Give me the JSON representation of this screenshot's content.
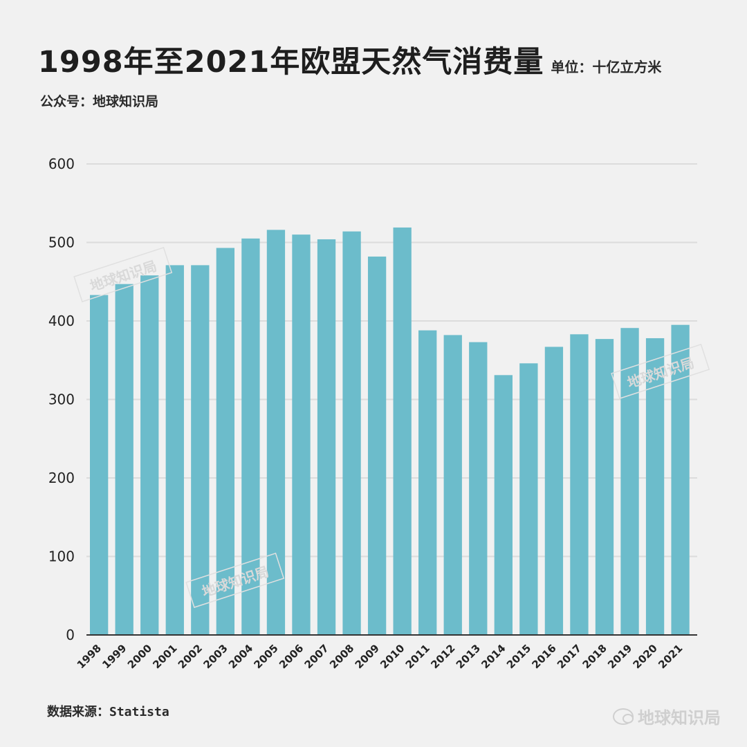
{
  "header": {
    "title": "1998年至2021年欧盟天然气消费量",
    "unit": "单位：十亿立方米",
    "subtitle": "公众号：地球知识局"
  },
  "footer": {
    "source": "数据来源：Statista",
    "brand": "地球知识局"
  },
  "watermark": "地球知识局",
  "chart_data": {
    "type": "bar",
    "title": "1998年至2021年欧盟天然气消费量",
    "unit": "单位：十亿立方米",
    "categories": [
      "1998",
      "1999",
      "2000",
      "2001",
      "2002",
      "2003",
      "2004",
      "2005",
      "2006",
      "2007",
      "2008",
      "2009",
      "2010",
      "2011",
      "2012",
      "2013",
      "2014",
      "2015",
      "2016",
      "2017",
      "2018",
      "2019",
      "2020",
      "2021"
    ],
    "values": [
      433,
      447,
      458,
      471,
      471,
      493,
      505,
      516,
      510,
      504,
      514,
      482,
      519,
      388,
      382,
      373,
      331,
      346,
      367,
      383,
      377,
      391,
      378,
      395
    ],
    "ylim": [
      0,
      600
    ],
    "yticks": [
      0,
      100,
      200,
      300,
      400,
      500,
      600
    ],
    "grid": true,
    "bar_color": "#6cbccb",
    "gridline_color": "#dcdcdc"
  }
}
